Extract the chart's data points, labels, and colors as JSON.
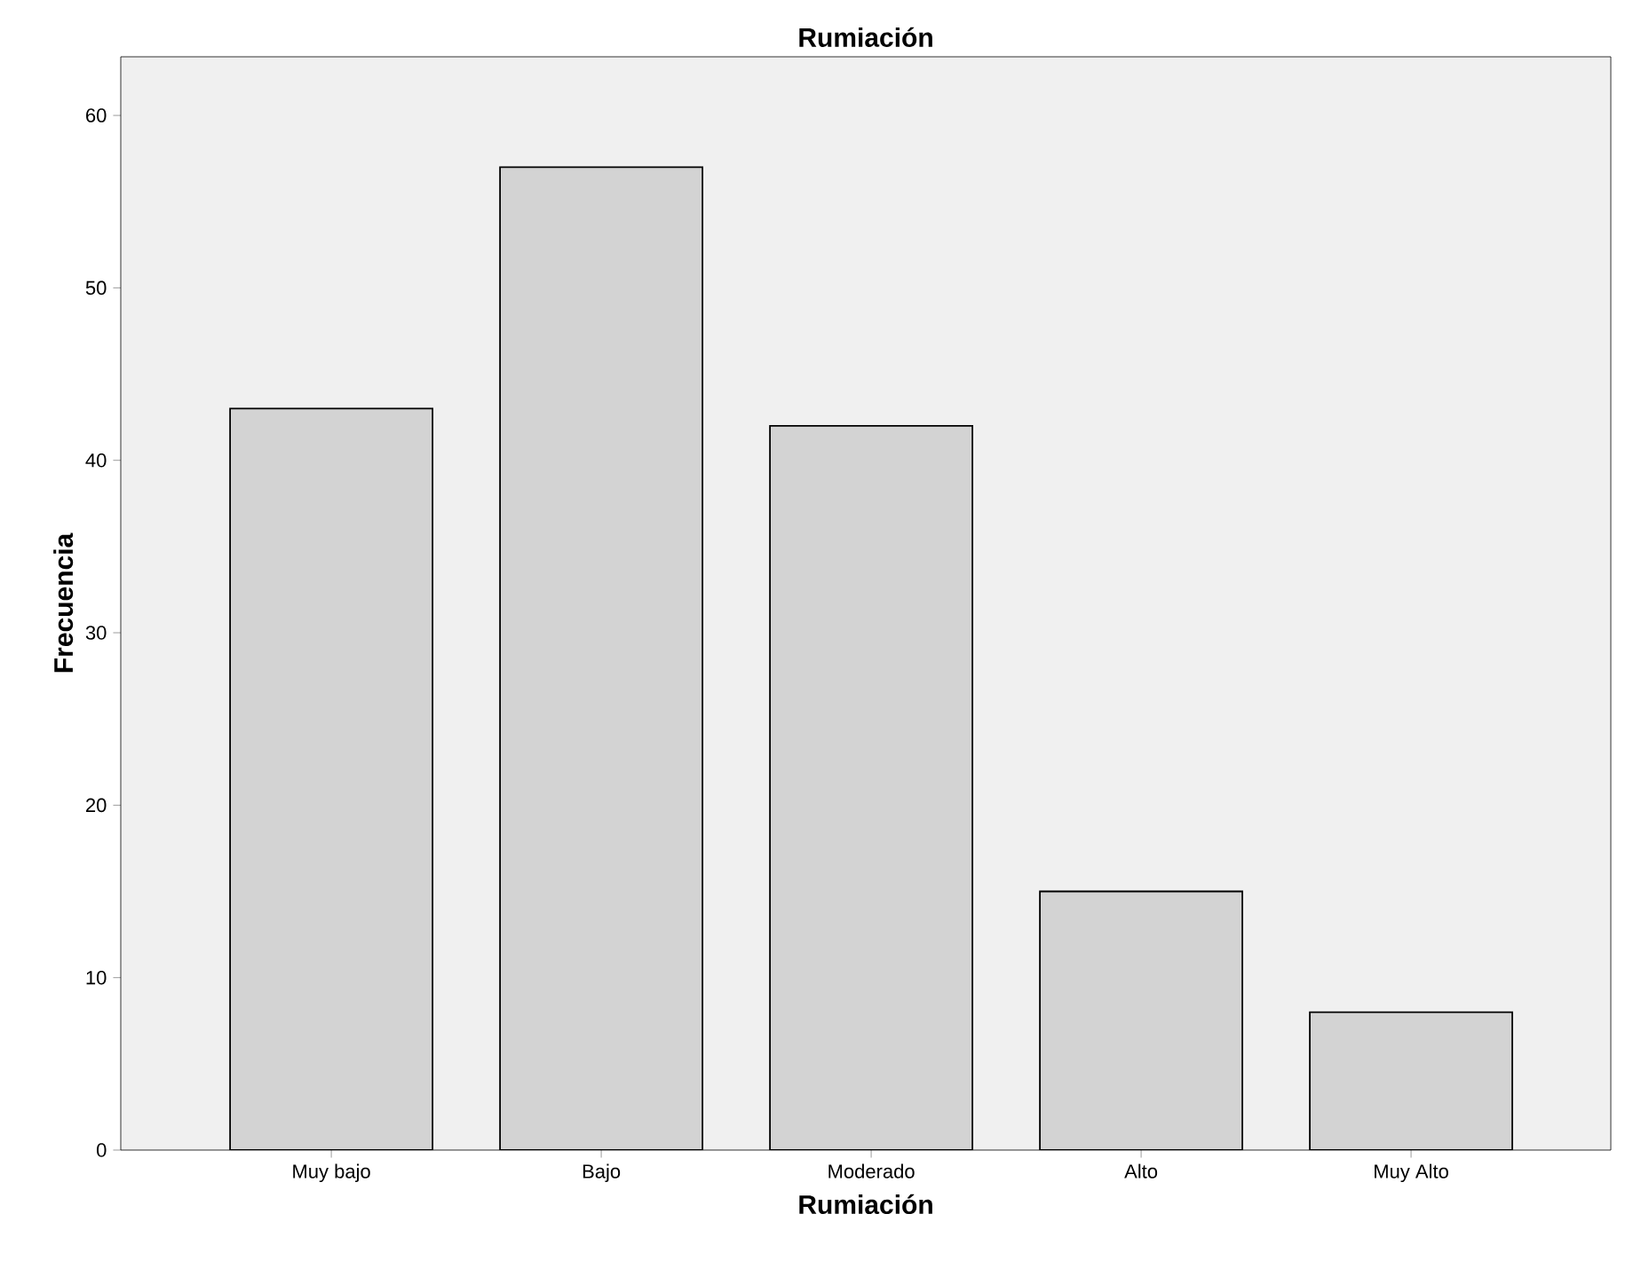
{
  "chart_data": {
    "type": "bar",
    "title": "Rumiación",
    "xlabel": "Rumiación",
    "ylabel": "Frecuencia",
    "categories": [
      "Muy bajo",
      "Bajo",
      "Moderado",
      "Alto",
      "Muy Alto"
    ],
    "values": [
      43,
      57,
      42,
      15,
      8
    ],
    "color": "#d3d3d3",
    "ylim": [
      0,
      63.4
    ],
    "yticks": [
      0,
      10,
      20,
      30,
      40,
      50,
      60
    ]
  }
}
